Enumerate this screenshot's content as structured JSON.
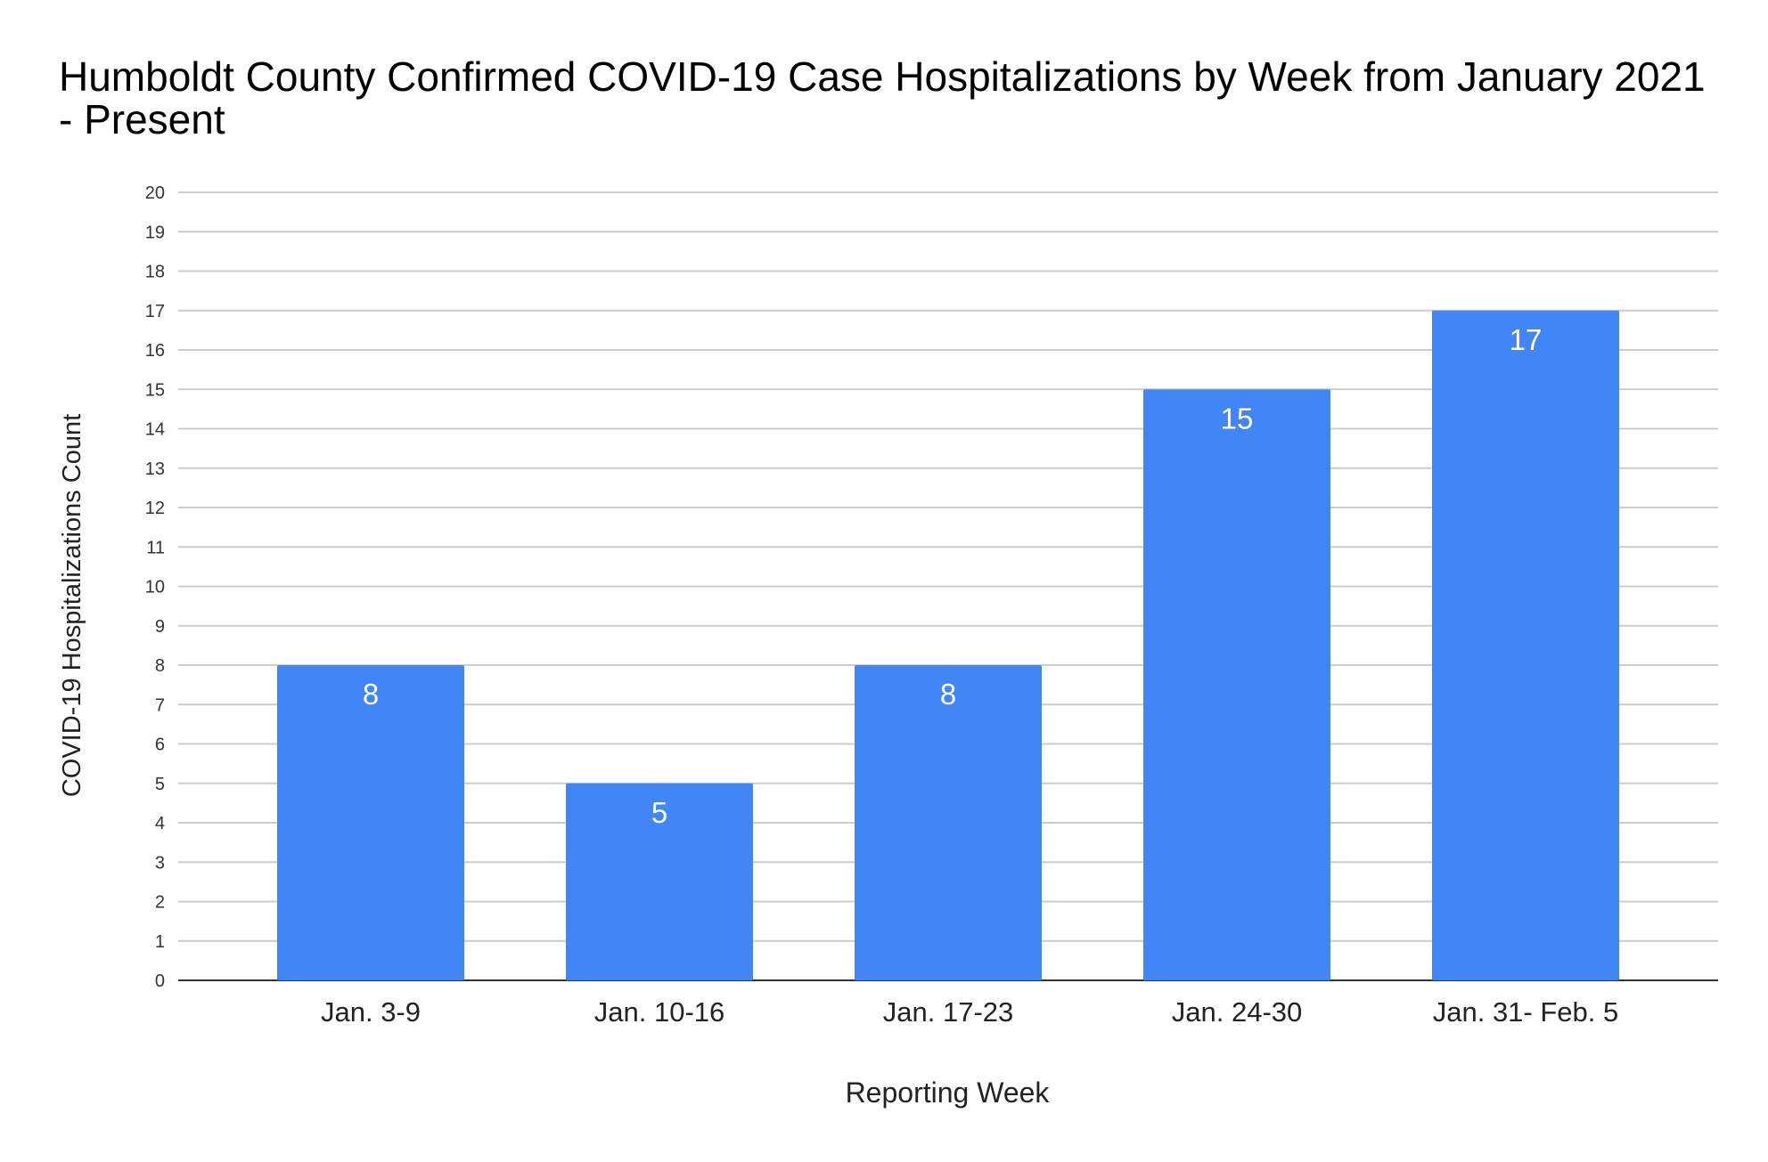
{
  "chart_data": {
    "type": "bar",
    "title": "Humboldt County Confirmed COVID-19 Case Hospitalizations by Week from January 2021 - Present",
    "xlabel": "Reporting Week",
    "ylabel": "COVID-19 Hospitalizations Count",
    "categories": [
      "Jan. 3-9",
      "Jan. 10-16",
      "Jan. 17-23",
      "Jan. 24-30",
      "Jan. 31- Feb. 5"
    ],
    "values": [
      8,
      5,
      8,
      15,
      17
    ],
    "data_labels": [
      "8",
      "5",
      "8",
      "15",
      "17"
    ],
    "ylim": [
      0,
      20
    ],
    "yticks": [
      0,
      1,
      2,
      3,
      4,
      5,
      6,
      7,
      8,
      9,
      10,
      11,
      12,
      13,
      14,
      15,
      16,
      17,
      18,
      19,
      20
    ],
    "grid": true,
    "legend": "none",
    "bar_color": "#4285f4",
    "grid_color": "#cccccc"
  }
}
